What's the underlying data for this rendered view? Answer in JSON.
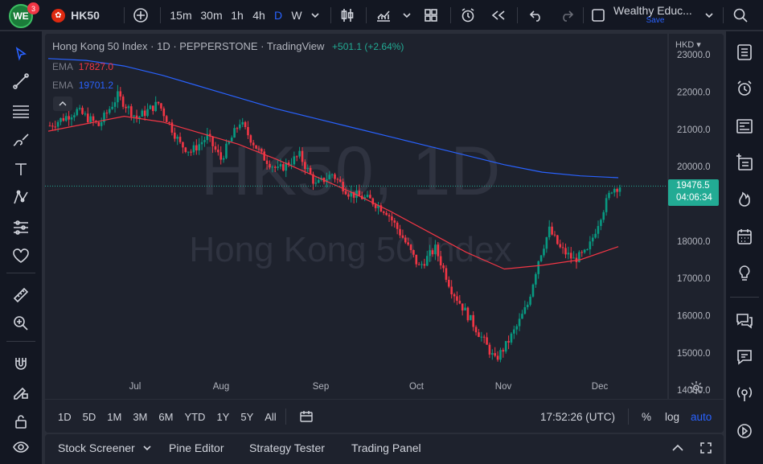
{
  "toolbar": {
    "notification_count": "3",
    "symbol": "HK50",
    "intervals": [
      "15m",
      "30m",
      "1h",
      "4h",
      "D",
      "W"
    ],
    "active_interval": "D",
    "layout_name": "Wealthy Educ...",
    "save_label": "Save"
  },
  "chart": {
    "title": "Hong Kong 50 Index · 1D · PEPPERSTONE · TradingView",
    "change": "+501.1 (+2.64%)",
    "ema1_label": "EMA",
    "ema1_value": "17827.0",
    "ema2_label": "EMA",
    "ema2_value": "19701.2",
    "watermark_big": "HK50, 1D",
    "watermark_small": "Hong Kong 50 Index",
    "currency": "HKD",
    "price_tag": "19476.5",
    "countdown": "04:06:34",
    "price_ticks": [
      "23000.0",
      "22000.0",
      "21000.0",
      "20000.0",
      "18000.0",
      "17000.0",
      "16000.0",
      "15000.0",
      "14000.0"
    ],
    "time_ticks": [
      "Jul",
      "Aug",
      "Sep",
      "Oct",
      "Nov",
      "Dec"
    ]
  },
  "chart_data": {
    "type": "candlestick",
    "title": "Hong Kong 50 Index",
    "x_range": [
      "Jun",
      "Dec"
    ],
    "ylim": [
      13700,
      23500
    ],
    "last_price": 19476.5,
    "series": [
      {
        "name": "EMA",
        "value": 17827.0,
        "color": "#f23645",
        "points": [
          20950,
          21150,
          21350,
          21200,
          20900,
          20600,
          20200,
          19750,
          19300,
          18800,
          18250,
          17700,
          17250,
          17350,
          17500,
          17850
        ]
      },
      {
        "name": "EMA",
        "value": 19701.2,
        "color": "#2962ff",
        "points": [
          22900,
          22850,
          22700,
          22450,
          22150,
          21850,
          21550,
          21300,
          21050,
          20800,
          20550,
          20300,
          20050,
          19850,
          19750,
          19701
        ]
      }
    ],
    "colors": {
      "up": "#089981",
      "down": "#f23645"
    }
  },
  "range_bar": {
    "ranges": [
      "1D",
      "5D",
      "1M",
      "3M",
      "6M",
      "YTD",
      "1Y",
      "5Y",
      "All"
    ],
    "clock": "17:52:26 (UTC)",
    "percent": "%",
    "log": "log",
    "auto": "auto"
  },
  "bottom_tabs": [
    "Stock Screener",
    "Pine Editor",
    "Strategy Tester",
    "Trading Panel"
  ]
}
